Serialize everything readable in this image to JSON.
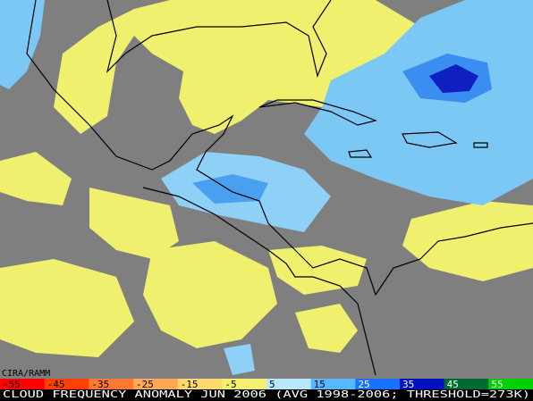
{
  "credit": "CIRA/RAMM",
  "legend": {
    "ticks": [
      -55,
      -45,
      -35,
      -25,
      -15,
      -5,
      5,
      15,
      25,
      35,
      45,
      55
    ],
    "colors": [
      "#ff0000",
      "#ff4000",
      "#ff7a30",
      "#ffa858",
      "#ffd870",
      "#f4f070",
      "#b8e8ff",
      "#58b8ff",
      "#1a70ff",
      "#0010c0",
      "#006a30",
      "#00d000"
    ]
  },
  "caption": "CLOUD FREQUENCY ANOMALY JUN 2006 (AVG 1998-2006; THRESHOLD=273K)"
}
